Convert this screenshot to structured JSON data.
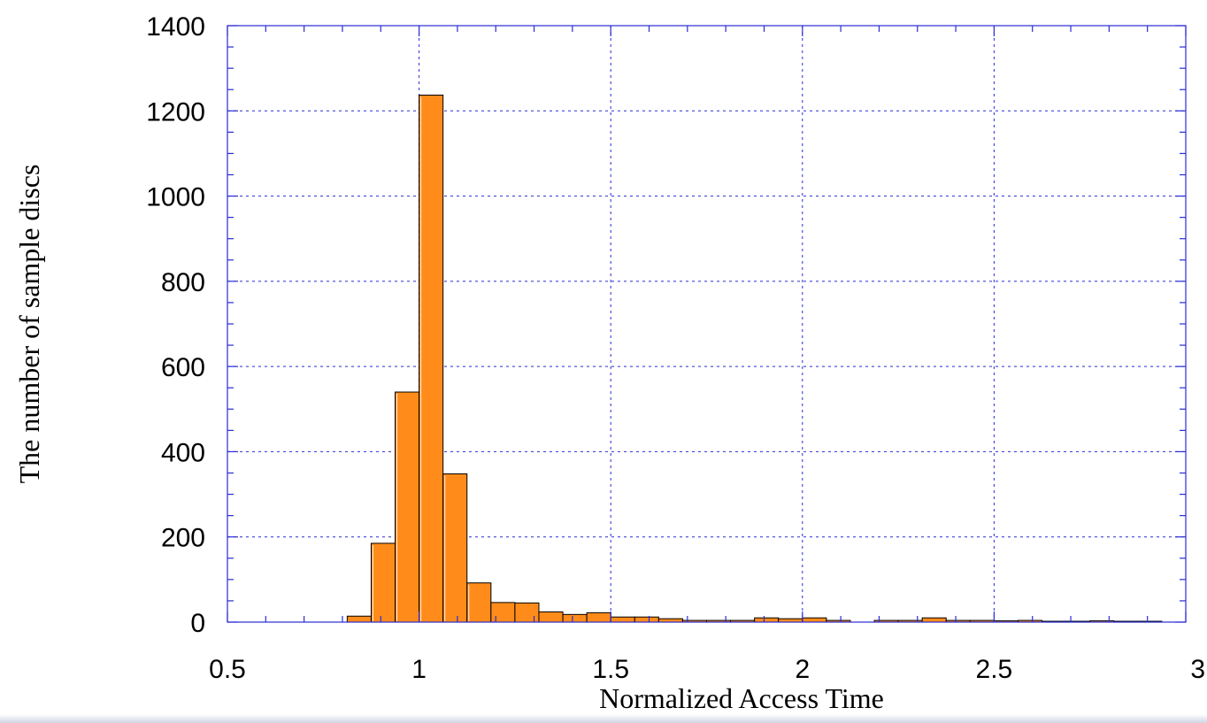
{
  "chart_data": {
    "type": "bar",
    "title": "",
    "xlabel": "Normalized Access Time",
    "ylabel": "The number of sample discs",
    "xlim": [
      0.5,
      3
    ],
    "ylim": [
      0,
      1400
    ],
    "x_ticks": [
      0.5,
      1,
      1.5,
      2,
      2.5,
      3
    ],
    "x_tick_labels": [
      "0.5",
      "1",
      "1.5",
      "2",
      "2.5",
      "3"
    ],
    "y_ticks": [
      0,
      200,
      400,
      600,
      800,
      1000,
      1200,
      1400
    ],
    "y_tick_labels": [
      "0",
      "200",
      "400",
      "600",
      "800",
      "1000",
      "1200",
      "1400"
    ],
    "grid": true,
    "bin_width": 0.0625,
    "bins": [
      {
        "x0": 0.8125,
        "count": 14
      },
      {
        "x0": 0.875,
        "count": 185
      },
      {
        "x0": 0.9375,
        "count": 540
      },
      {
        "x0": 1.0,
        "count": 1237
      },
      {
        "x0": 1.0625,
        "count": 348
      },
      {
        "x0": 1.125,
        "count": 92
      },
      {
        "x0": 1.1875,
        "count": 46
      },
      {
        "x0": 1.25,
        "count": 45
      },
      {
        "x0": 1.3125,
        "count": 24
      },
      {
        "x0": 1.375,
        "count": 18
      },
      {
        "x0": 1.4375,
        "count": 22
      },
      {
        "x0": 1.5,
        "count": 12
      },
      {
        "x0": 1.5625,
        "count": 12
      },
      {
        "x0": 1.625,
        "count": 8
      },
      {
        "x0": 1.6875,
        "count": 4
      },
      {
        "x0": 1.75,
        "count": 4
      },
      {
        "x0": 1.8125,
        "count": 4
      },
      {
        "x0": 1.875,
        "count": 10
      },
      {
        "x0": 1.9375,
        "count": 8
      },
      {
        "x0": 2.0,
        "count": 10
      },
      {
        "x0": 2.0625,
        "count": 4
      },
      {
        "x0": 2.125,
        "count": 0
      },
      {
        "x0": 2.1875,
        "count": 4
      },
      {
        "x0": 2.25,
        "count": 4
      },
      {
        "x0": 2.3125,
        "count": 10
      },
      {
        "x0": 2.375,
        "count": 4
      },
      {
        "x0": 2.4375,
        "count": 4
      },
      {
        "x0": 2.5,
        "count": 3
      },
      {
        "x0": 2.5625,
        "count": 4
      },
      {
        "x0": 2.625,
        "count": 2
      },
      {
        "x0": 2.6875,
        "count": 2
      },
      {
        "x0": 2.75,
        "count": 3
      },
      {
        "x0": 2.8125,
        "count": 2
      },
      {
        "x0": 2.875,
        "count": 2
      }
    ],
    "bar_color": "#ff8c1a",
    "bar_edge_color": "#000000",
    "grid_color": "#2b2bd6"
  }
}
